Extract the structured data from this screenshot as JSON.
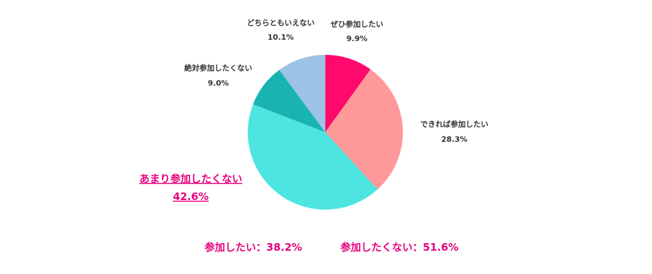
{
  "chart_data": {
    "type": "pie",
    "categories": [
      "ぜひ参加したい",
      "できれば参加したい",
      "あまり参加したくない",
      "絶対参加したくない",
      "どちらともいえない"
    ],
    "values": [
      9.9,
      28.3,
      42.6,
      9.0,
      10.1
    ],
    "value_labels": [
      "9.9%",
      "28.3%",
      "42.6%",
      "9.0%",
      "10.1%"
    ],
    "colors": [
      "#ff0a6c",
      "#ff9999",
      "#4de5e0",
      "#19b3b1",
      "#9cc3e6"
    ],
    "start_angle_deg": 0,
    "direction": "clockwise",
    "highlighted_category": "あまり参加したくない",
    "highlight_color": "#e6007e",
    "legend": "none"
  },
  "summary": {
    "positive": "参加したい：38.2%",
    "negative": "参加したくない：51.6%",
    "color": "#e6007e"
  }
}
